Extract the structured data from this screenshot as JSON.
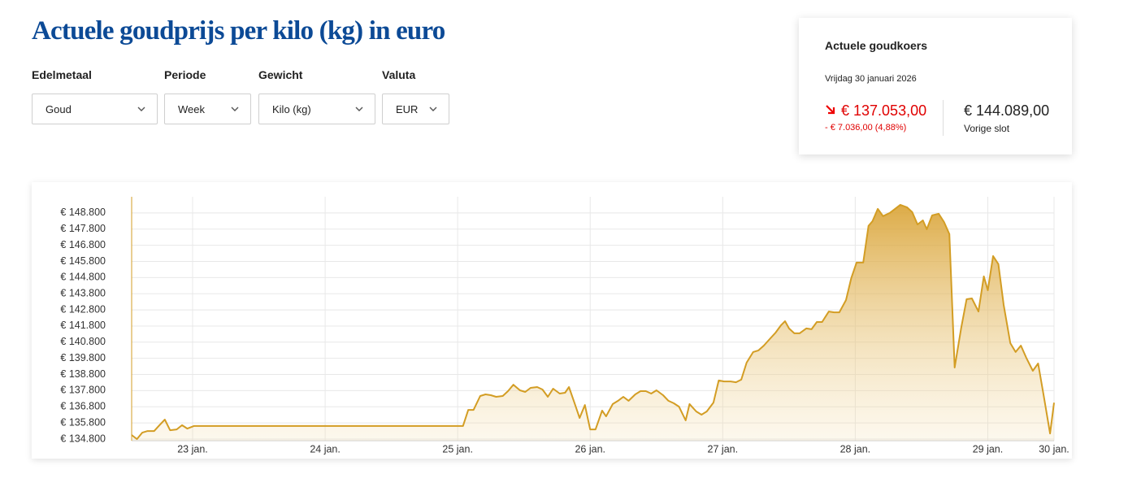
{
  "header": {
    "title": "Actuele goudprijs per kilo (kg) in euro"
  },
  "filters": [
    {
      "label": "Edelmetaal",
      "value": "Goud"
    },
    {
      "label": "Periode",
      "value": "Week"
    },
    {
      "label": "Gewicht",
      "value": "Kilo (kg)"
    },
    {
      "label": "Valuta",
      "value": "EUR"
    }
  ],
  "quote": {
    "title": "Actuele goudkoers",
    "date": "Vrijdag 30 januari 2026",
    "price": "€ 137.053,00",
    "change": "- € 7.036,00 (4,88%)",
    "previous": "€ 144.089,00",
    "previous_label": "Vorige slot"
  },
  "chart_data": {
    "type": "area",
    "x": [
      22.54,
      22.58,
      22.62,
      22.66,
      22.71,
      22.75,
      22.79,
      22.83,
      22.88,
      22.92,
      22.96,
      23.01,
      25.04,
      25.08,
      25.12,
      25.17,
      25.21,
      25.25,
      25.29,
      25.34,
      25.38,
      25.42,
      25.47,
      25.51,
      25.55,
      25.6,
      25.64,
      25.68,
      25.72,
      25.77,
      25.81,
      25.84,
      25.88,
      25.92,
      25.96,
      26.0,
      26.04,
      26.09,
      26.12,
      26.17,
      26.21,
      26.25,
      26.29,
      26.34,
      26.38,
      26.42,
      26.46,
      26.5,
      26.55,
      26.59,
      26.63,
      26.67,
      26.72,
      26.75,
      26.8,
      26.84,
      26.88,
      26.93,
      26.97,
      27.01,
      27.06,
      27.1,
      27.14,
      27.18,
      27.23,
      27.27,
      27.31,
      27.36,
      27.4,
      27.44,
      27.47,
      27.5,
      27.54,
      27.58,
      27.63,
      27.67,
      27.71,
      27.75,
      27.8,
      27.84,
      27.88,
      27.93,
      27.97,
      28.01,
      28.06,
      28.1,
      28.13,
      28.17,
      28.21,
      28.26,
      28.3,
      28.34,
      28.39,
      28.43,
      28.47,
      28.51,
      28.54,
      28.58,
      28.63,
      28.67,
      28.71,
      28.75,
      28.8,
      28.84,
      28.88,
      28.93,
      28.97,
      29.0,
      29.04,
      29.08,
      29.12,
      29.17,
      29.21,
      29.25,
      29.29,
      29.34,
      29.38,
      29.42,
      29.47,
      29.5
    ],
    "series": [
      {
        "color": "#d39d24",
        "values": [
          135050,
          134800,
          135200,
          135300,
          135300,
          135660,
          136010,
          135350,
          135400,
          135660,
          135450,
          135610,
          135610,
          136610,
          136610,
          137470,
          137570,
          137520,
          137420,
          137470,
          137770,
          138170,
          137820,
          137720,
          137970,
          138020,
          137870,
          137420,
          137920,
          137620,
          137670,
          138020,
          137070,
          136110,
          136910,
          135400,
          135400,
          136560,
          136210,
          136970,
          137170,
          137420,
          137170,
          137570,
          137770,
          137770,
          137620,
          137820,
          137520,
          137170,
          137020,
          136810,
          135960,
          136970,
          136510,
          136310,
          136510,
          137060,
          138430,
          138370,
          138370,
          138320,
          138480,
          139530,
          140190,
          140290,
          140590,
          141040,
          141400,
          141850,
          142100,
          141650,
          141350,
          141350,
          141650,
          141600,
          142050,
          142050,
          142700,
          142650,
          142650,
          143410,
          144770,
          145730,
          145730,
          148000,
          148290,
          149050,
          148600,
          148800,
          149050,
          149300,
          149150,
          148850,
          148090,
          148340,
          147790,
          148650,
          148750,
          148240,
          147490,
          139230,
          141700,
          143460,
          143510,
          142700,
          144870,
          144010,
          146130,
          145630,
          143110,
          140740,
          140190,
          140590,
          139840,
          139030,
          139480,
          137570,
          135150,
          137050
        ]
      }
    ],
    "xlim": [
      22.54,
      29.5
    ],
    "xticks": [
      {
        "value": 23,
        "label": "23 jan."
      },
      {
        "value": 24,
        "label": "24 jan."
      },
      {
        "value": 25,
        "label": "25 jan."
      },
      {
        "value": 26,
        "label": "26 jan."
      },
      {
        "value": 27,
        "label": "27 jan."
      },
      {
        "value": 28,
        "label": "28 jan."
      },
      {
        "value": 29,
        "label": "29 jan."
      },
      {
        "value": 29.5,
        "label": "30 jan."
      }
    ],
    "ylim": [
      134700,
      149800
    ],
    "yticks": [
      {
        "value": 134800,
        "label": "€ 134.800"
      },
      {
        "value": 135800,
        "label": "€ 135.800"
      },
      {
        "value": 136800,
        "label": "€ 136.800"
      },
      {
        "value": 137800,
        "label": "€ 137.800"
      },
      {
        "value": 138800,
        "label": "€ 138.800"
      },
      {
        "value": 139800,
        "label": "€ 139.800"
      },
      {
        "value": 140800,
        "label": "€ 140.800"
      },
      {
        "value": 141800,
        "label": "€ 141.800"
      },
      {
        "value": 142800,
        "label": "€ 142.800"
      },
      {
        "value": 143800,
        "label": "€ 143.800"
      },
      {
        "value": 144800,
        "label": "€ 144.800"
      },
      {
        "value": 145800,
        "label": "€ 145.800"
      },
      {
        "value": 146800,
        "label": "€ 146.800"
      },
      {
        "value": 147800,
        "label": "€ 147.800"
      },
      {
        "value": 148800,
        "label": "€ 148.800"
      }
    ],
    "grid": true
  }
}
